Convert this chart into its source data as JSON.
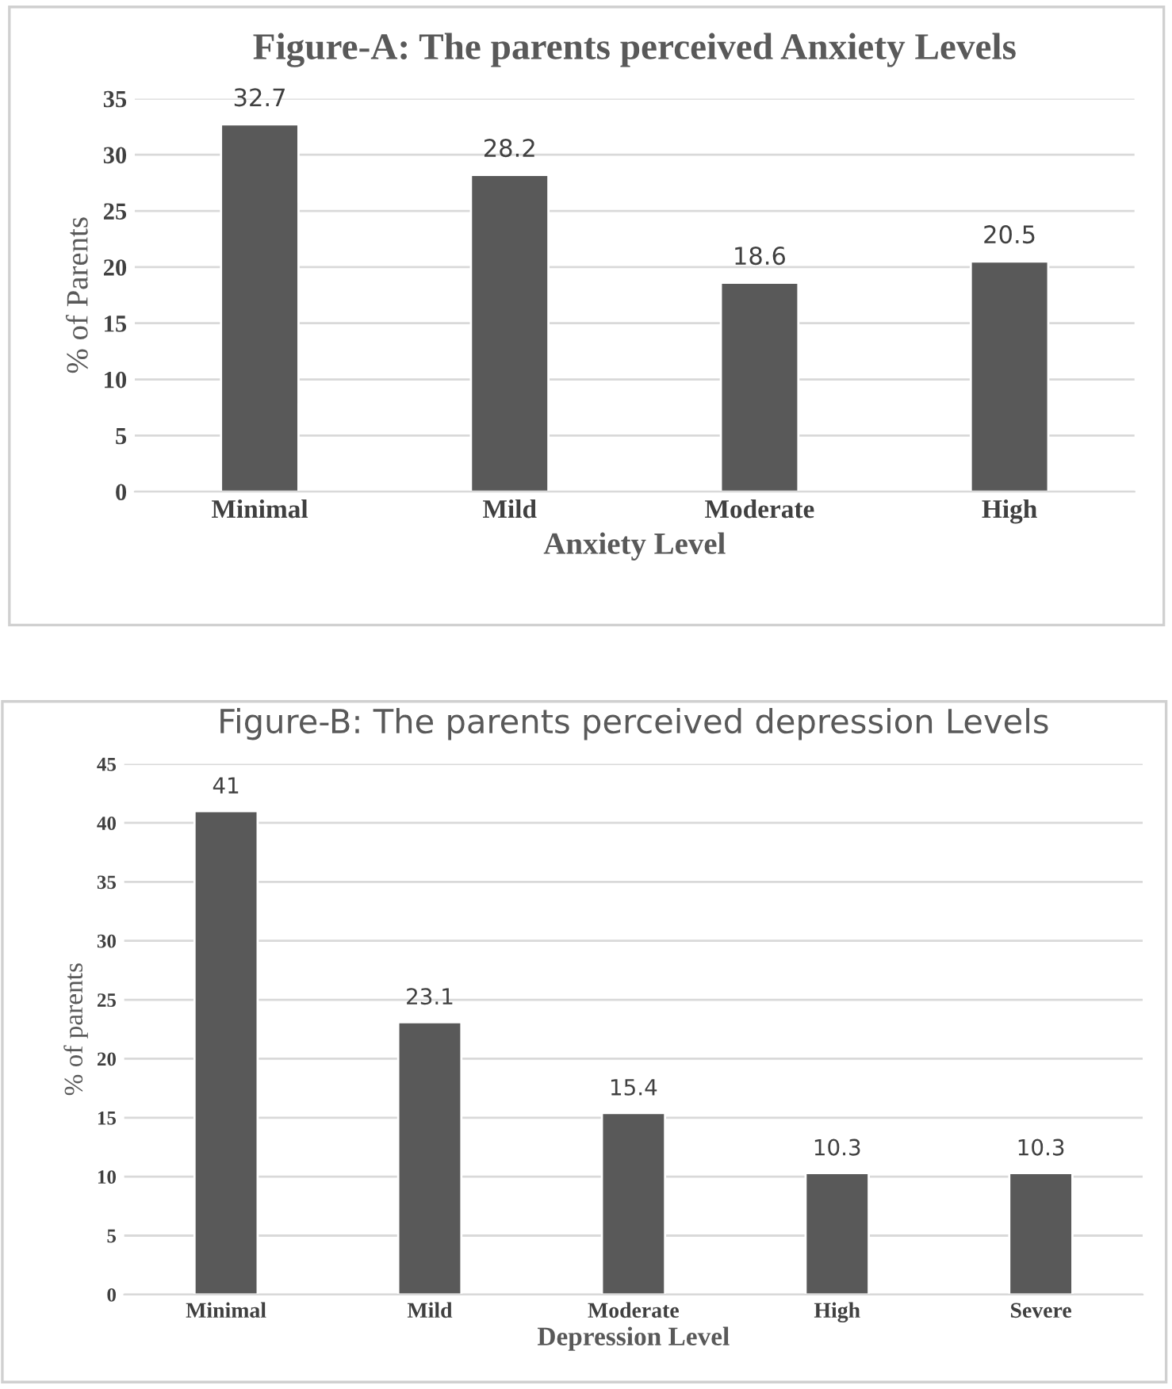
{
  "chart_data": [
    {
      "type": "bar",
      "title": "Figure-A: The parents perceived Anxiety Levels",
      "xlabel": "Anxiety Level",
      "ylabel": "% of Parents",
      "categories": [
        "Minimal",
        "Mild",
        "Moderate",
        "High"
      ],
      "values": [
        32.7,
        28.2,
        18.6,
        20.5
      ],
      "color": "#595959",
      "ylim": [
        0,
        35
      ],
      "yticks": [
        0,
        5,
        10,
        15,
        20,
        25,
        30,
        35
      ],
      "grid": "y",
      "data_labels": true
    },
    {
      "type": "bar",
      "title": "Figure-B: The parents perceived depression Levels",
      "xlabel": "Depression Level",
      "ylabel": "% of parents",
      "categories": [
        "Minimal",
        "Mild",
        "Moderate",
        "High",
        "Severe"
      ],
      "values": [
        41,
        23.1,
        15.4,
        10.3,
        10.3
      ],
      "color": "#595959",
      "ylim": [
        0,
        45
      ],
      "yticks": [
        0,
        5,
        10,
        15,
        20,
        25,
        30,
        35,
        40,
        45
      ],
      "grid": "y",
      "data_labels": true
    }
  ]
}
